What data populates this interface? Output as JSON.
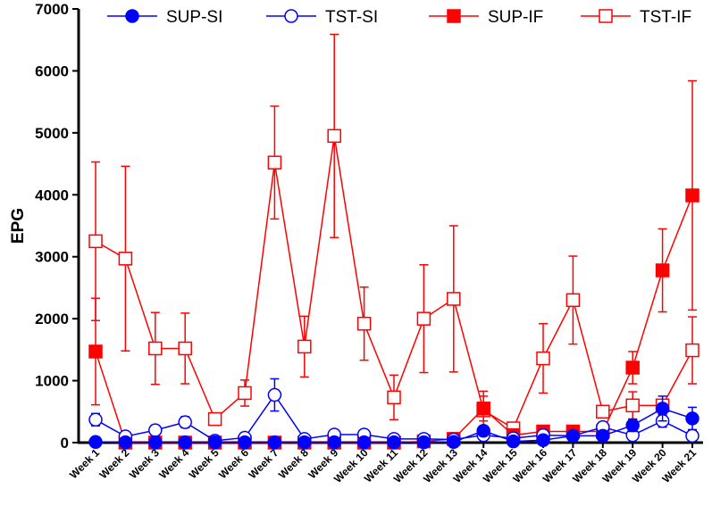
{
  "chart_data": {
    "type": "line",
    "title": "",
    "xlabel": "",
    "ylabel": "EPG",
    "ylim": [
      0,
      7000
    ],
    "yticks": [
      0,
      1000,
      2000,
      3000,
      4000,
      5000,
      6000,
      7000
    ],
    "legend_position": "top",
    "categories": [
      "Week 1",
      "Week 2",
      "Week 3",
      "Week 4",
      "Week 5",
      "Week 6",
      "Week 7",
      "Week 8",
      "Week 9",
      "Week 10",
      "Week 11",
      "Week 12",
      "Week 13",
      "Week 14",
      "Week 15",
      "Week 16",
      "Week 17",
      "Week 18",
      "Week 19",
      "Week 20",
      "Week 21"
    ],
    "series": [
      {
        "name": "SUP-SI",
        "color": "#0000ff",
        "marker": "filled-circle",
        "values": [
          10,
          5,
          5,
          5,
          5,
          5,
          5,
          5,
          5,
          5,
          5,
          5,
          10,
          190,
          20,
          40,
          110,
          110,
          280,
          550,
          390
        ],
        "errors": [
          0,
          0,
          0,
          0,
          0,
          0,
          0,
          0,
          0,
          0,
          0,
          0,
          0,
          40,
          0,
          0,
          0,
          0,
          100,
          200,
          180
        ]
      },
      {
        "name": "TST-SI",
        "color": "#0000ff",
        "marker": "open-circle",
        "values": [
          370,
          100,
          200,
          330,
          30,
          80,
          770,
          60,
          130,
          130,
          60,
          60,
          50,
          120,
          70,
          120,
          110,
          250,
          120,
          350,
          110
        ],
        "errors": [
          100,
          0,
          80,
          90,
          0,
          0,
          260,
          0,
          0,
          0,
          0,
          0,
          0,
          0,
          0,
          0,
          0,
          70,
          60,
          100,
          0
        ]
      },
      {
        "name": "SUP-IF",
        "color": "#ff0000",
        "marker": "filled-square",
        "values": [
          1470,
          0,
          0,
          0,
          0,
          0,
          0,
          0,
          0,
          0,
          0,
          20,
          60,
          550,
          120,
          180,
          180,
          180,
          1210,
          2780,
          3990
        ],
        "errors": [
          860,
          0,
          0,
          0,
          0,
          0,
          0,
          0,
          0,
          0,
          0,
          0,
          0,
          200,
          0,
          0,
          0,
          0,
          260,
          670,
          1850
        ]
      },
      {
        "name": "TST-IF",
        "color": "#ff0000",
        "marker": "open-square",
        "values": [
          3250,
          2970,
          1520,
          1520,
          380,
          800,
          4520,
          1550,
          4950,
          1920,
          730,
          2000,
          2320,
          520,
          230,
          1360,
          2300,
          500,
          600,
          600,
          1490
        ],
        "errors": [
          1280,
          1490,
          580,
          570,
          50,
          210,
          910,
          490,
          1640,
          590,
          360,
          870,
          1180,
          310,
          50,
          560,
          710,
          60,
          220,
          50,
          540
        ]
      }
    ]
  }
}
